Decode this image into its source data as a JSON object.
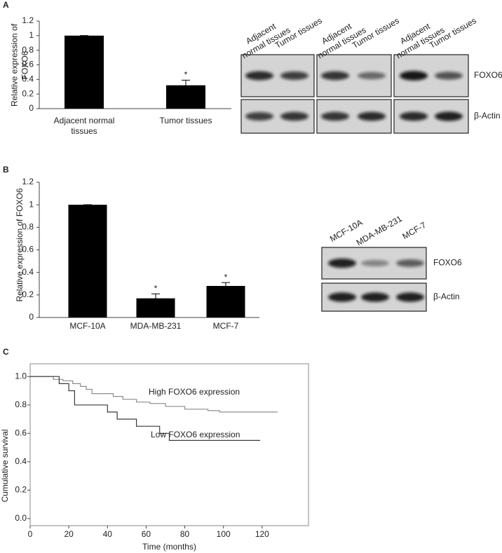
{
  "panels": {
    "a": "A",
    "b": "B",
    "c": "C"
  },
  "chart_data": [
    {
      "type": "bar",
      "ylabel": "Relative expression of FOXO6",
      "categories": [
        "Adjacent normal tissues",
        "Tumor tissues"
      ],
      "values": [
        1,
        0.32
      ],
      "errors": [
        0,
        0.07
      ],
      "significance": [
        null,
        "*"
      ],
      "color": "#000000",
      "ylim": [
        0,
        1.2
      ],
      "yticks": [
        0,
        0.2,
        0.4,
        0.6,
        0.8,
        1,
        1.2
      ]
    },
    {
      "type": "bar",
      "ylabel": "Relative expression of FOXO6",
      "categories": [
        "MCF-10A",
        "MDA-MB-231",
        "MCF-7"
      ],
      "values": [
        1,
        0.17,
        0.28
      ],
      "errors": [
        0,
        0.04,
        0.03
      ],
      "significance": [
        null,
        "*",
        "*"
      ],
      "color": "#000000",
      "ylim": [
        0,
        1.2
      ],
      "yticks": [
        0,
        0.2,
        0.4,
        0.6,
        0.8,
        1,
        1.2
      ]
    },
    {
      "type": "line",
      "xlabel": "Time (months)",
      "ylabel": "Cumulative survival",
      "series": [
        {
          "name": "High FOXO6 expression",
          "color": "#8c8c8c",
          "x": [
            0,
            12,
            12,
            17,
            17,
            22,
            22,
            26,
            26,
            29,
            29,
            32,
            32,
            43,
            43,
            48,
            48,
            55,
            55,
            62,
            62,
            70,
            70,
            80,
            80,
            92,
            92,
            98,
            98,
            128
          ],
          "values": [
            1,
            1,
            0.98,
            0.98,
            0.97,
            0.97,
            0.95,
            0.95,
            0.93,
            0.93,
            0.91,
            0.91,
            0.88,
            0.88,
            0.86,
            0.86,
            0.84,
            0.84,
            0.82,
            0.82,
            0.81,
            0.81,
            0.79,
            0.79,
            0.77,
            0.77,
            0.76,
            0.76,
            0.75,
            0.75
          ]
        },
        {
          "name": "Low FOXO6 expression",
          "color": "#3a3a3a",
          "x": [
            0,
            15,
            15,
            20,
            20,
            23,
            23,
            40,
            40,
            45,
            45,
            55,
            55,
            67,
            67,
            72,
            72,
            119
          ],
          "values": [
            1,
            1,
            0.95,
            0.95,
            0.9,
            0.9,
            0.8,
            0.8,
            0.75,
            0.75,
            0.7,
            0.7,
            0.65,
            0.65,
            0.6,
            0.6,
            0.55,
            0.55
          ]
        }
      ],
      "xlim": [
        0,
        144
      ],
      "xticks": [
        0,
        20,
        40,
        60,
        80,
        100,
        120
      ],
      "ylim": [
        -0.05,
        1.09
      ],
      "yticks": [
        {
          "value": 0,
          "label": "0.0"
        },
        0.2,
        0.4,
        0.6,
        0.8,
        {
          "value": 1,
          "label": "1.0"
        }
      ]
    }
  ],
  "blots": [
    {
      "lanes": [
        "Adjacent normal tissues",
        "Tumor tissues",
        "Adjacent normal tissues",
        "Tumor tissues",
        "Adjacent normal tissues",
        "Tumor tissues"
      ],
      "rows": [
        "FOXO6",
        "β-Actin"
      ]
    },
    {
      "lanes": [
        "MCF-10A",
        "MDA-MB-231",
        "MCF-7"
      ],
      "rows": [
        "FOXO6",
        "β-Actin"
      ]
    }
  ]
}
